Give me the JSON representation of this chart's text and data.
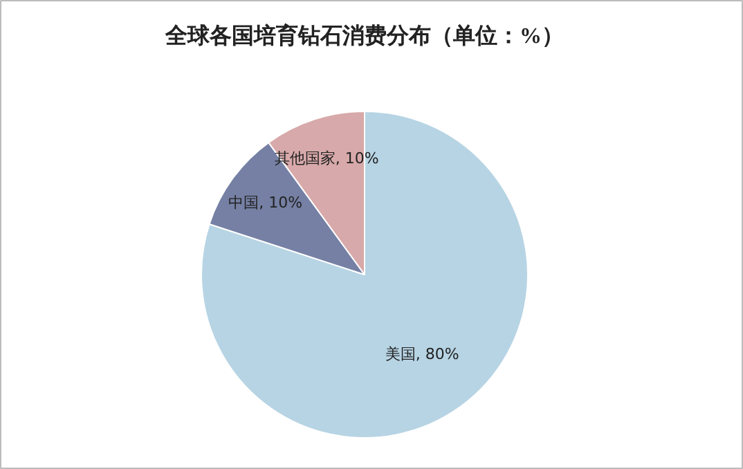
{
  "chart_data": {
    "type": "pie",
    "title": "全球各国培育钻石消费分布（单位：%）",
    "categories": [
      "美国",
      "中国",
      "其他国家"
    ],
    "values": [
      80,
      10,
      10
    ],
    "colors": [
      "#b7d4e4",
      "#7580a4",
      "#d8a9aa"
    ],
    "value_labels": [
      "80%",
      "10%",
      "10%"
    ]
  }
}
